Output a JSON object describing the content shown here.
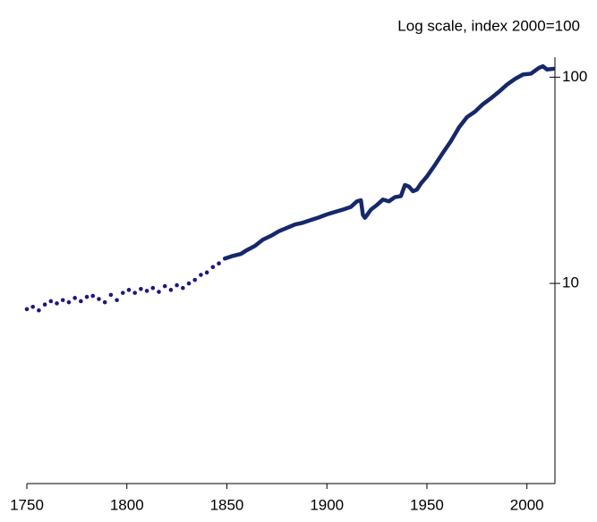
{
  "chart_data": {
    "type": "line",
    "subtitle": "Log scale, index 2000=100",
    "log_scale": true,
    "xlim": [
      1750,
      2014
    ],
    "ylim": [
      1.07,
      125
    ],
    "xticks": [
      1750,
      1800,
      1850,
      1900,
      1950,
      2000
    ],
    "yticks": [
      10,
      100
    ],
    "series": [
      {
        "style": "dots",
        "color": "#1a1a7a",
        "x": [
          1750,
          1753,
          1756,
          1759,
          1762,
          1765,
          1768,
          1771,
          1774,
          1777,
          1780,
          1783,
          1786,
          1789,
          1792,
          1795,
          1798,
          1801,
          1804,
          1807,
          1810,
          1813,
          1816,
          1819,
          1822,
          1825,
          1828,
          1831,
          1834,
          1837,
          1840,
          1843,
          1846,
          1849
        ],
        "values": [
          7.5,
          7.7,
          7.4,
          7.9,
          8.2,
          8.0,
          8.3,
          8.1,
          8.5,
          8.2,
          8.6,
          8.7,
          8.4,
          8.1,
          8.8,
          8.3,
          9.0,
          9.3,
          9.0,
          9.4,
          9.2,
          9.5,
          9.1,
          9.7,
          9.3,
          9.8,
          9.5,
          10.0,
          10.4,
          11.0,
          11.3,
          12.0,
          12.5,
          13.2
        ]
      },
      {
        "style": "line",
        "color": "#15286b",
        "x": [
          1849,
          1853,
          1857,
          1860,
          1864,
          1868,
          1872,
          1876,
          1880,
          1884,
          1888,
          1892,
          1896,
          1900,
          1904,
          1908,
          1912,
          1915,
          1917,
          1918,
          1919,
          1920,
          1922,
          1925,
          1928,
          1931,
          1934,
          1937,
          1939,
          1941,
          1943,
          1945,
          1947,
          1950,
          1954,
          1958,
          1962,
          1966,
          1970,
          1974,
          1978,
          1982,
          1986,
          1990,
          1994,
          1998,
          2002,
          2006,
          2008,
          2010,
          2014
        ],
        "values": [
          13.2,
          13.6,
          13.9,
          14.5,
          15.2,
          16.3,
          17.0,
          17.9,
          18.6,
          19.3,
          19.7,
          20.3,
          20.9,
          21.6,
          22.2,
          22.8,
          23.5,
          25.0,
          25.3,
          21.5,
          20.8,
          21.4,
          22.8,
          24.0,
          25.5,
          25.0,
          26.2,
          26.5,
          30.0,
          29.5,
          28.0,
          28.5,
          30.5,
          33.0,
          37.5,
          43.0,
          49.0,
          57.0,
          64.0,
          68.0,
          74.0,
          79.0,
          85.0,
          92.0,
          98.0,
          103.0,
          104.0,
          111.0,
          113.0,
          109.0,
          110.0
        ]
      }
    ]
  }
}
